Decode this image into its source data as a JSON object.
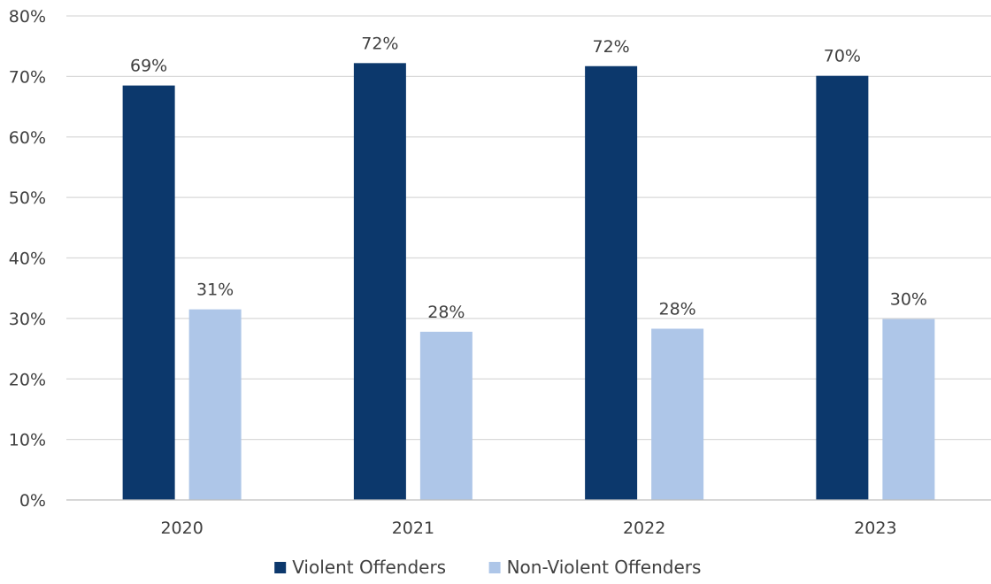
{
  "chart_data": {
    "type": "bar",
    "title": "",
    "xlabel": "",
    "ylabel": "",
    "categories": [
      "2020",
      "2021",
      "2022",
      "2023"
    ],
    "series": [
      {
        "name": "Violent Offenders",
        "color": "#0c386c",
        "values": [
          68.5,
          72.2,
          71.7,
          70.1
        ],
        "labels": [
          "69%",
          "72%",
          "72%",
          "70%"
        ]
      },
      {
        "name": "Non-Violent Offenders",
        "color": "#aec6e8",
        "values": [
          31.5,
          27.8,
          28.3,
          29.9
        ],
        "labels": [
          "31%",
          "28%",
          "28%",
          "30%"
        ]
      }
    ],
    "ylim": [
      0,
      80
    ],
    "yticks": [
      0,
      10,
      20,
      30,
      40,
      50,
      60,
      70,
      80
    ],
    "ytick_labels": [
      "0%",
      "10%",
      "20%",
      "30%",
      "40%",
      "50%",
      "60%",
      "70%",
      "80%"
    ],
    "grid": true,
    "legend_position": "bottom-center"
  }
}
